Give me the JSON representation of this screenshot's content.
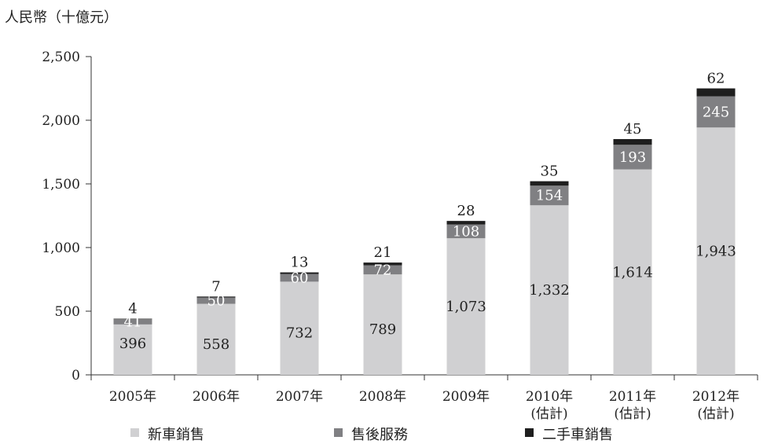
{
  "chart_data": {
    "type": "bar",
    "stacked": true,
    "ylabel": "人民幣（十億元）",
    "ylim": [
      0,
      2500
    ],
    "yticks": [
      0,
      500,
      "1,000",
      "1,500",
      "2,000",
      "2,500"
    ],
    "categories": [
      [
        "2005年"
      ],
      [
        "2006年"
      ],
      [
        "2007年"
      ],
      [
        "2008年"
      ],
      [
        "2009年"
      ],
      [
        "2010年",
        "(估計)"
      ],
      [
        "2011年",
        "(估計)"
      ],
      [
        "2012年",
        "(估計)"
      ]
    ],
    "series": [
      {
        "name": "新車銷售",
        "color": "#d0d0d2",
        "values": [
          396,
          558,
          732,
          789,
          1073,
          1332,
          1614,
          1943
        ],
        "labels": [
          "396",
          "558",
          "732",
          "789",
          "1,073",
          "1,332",
          "1,614",
          "1,943"
        ],
        "label_color": "#222222"
      },
      {
        "name": "售後服務",
        "color": "#808083",
        "values": [
          41,
          50,
          60,
          72,
          108,
          154,
          193,
          245
        ],
        "labels": [
          "41",
          "50",
          "60",
          "72",
          "108",
          "154",
          "193",
          "245"
        ],
        "label_color": "#ffffff"
      },
      {
        "name": "二手車銷售",
        "color": "#1e1e1e",
        "values": [
          4,
          7,
          13,
          21,
          28,
          35,
          45,
          62
        ],
        "labels": [
          "4",
          "7",
          "13",
          "21",
          "28",
          "35",
          "45",
          "62"
        ],
        "label_color": "#222222"
      }
    ],
    "legend_position": "bottom",
    "grid": false
  }
}
